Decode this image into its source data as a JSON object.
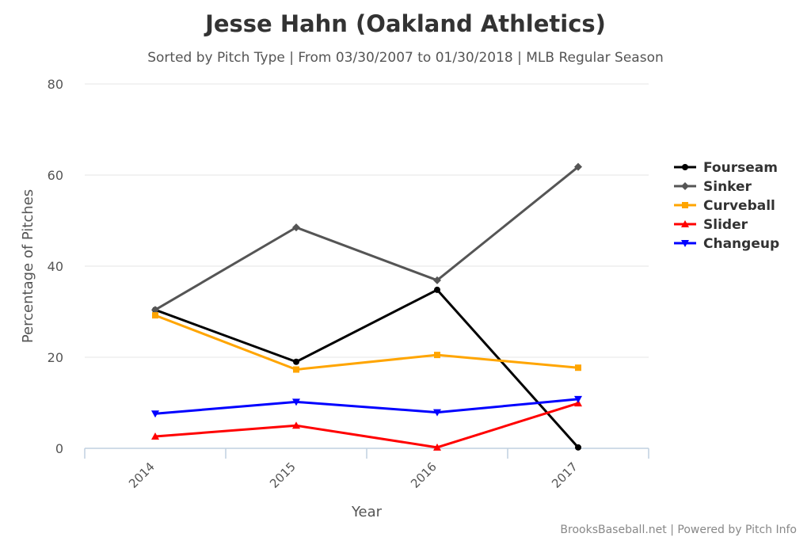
{
  "chart_data": {
    "type": "line",
    "title": "Jesse Hahn (Oakland Athletics)",
    "subtitle": "Sorted by Pitch Type | From 03/30/2007 to 01/30/2018 | MLB Regular Season",
    "xlabel": "Year",
    "ylabel": "Percentage of Pitches",
    "categories": [
      "2014",
      "2015",
      "2016",
      "2017"
    ],
    "ylim": [
      0,
      80
    ],
    "yticks": [
      0,
      20,
      40,
      60,
      80
    ],
    "grid": true,
    "legend_position": "right",
    "series": [
      {
        "name": "Fourseam",
        "color": "#000000",
        "marker": "circle",
        "values": [
          30.4,
          19.0,
          34.8,
          0.2
        ]
      },
      {
        "name": "Sinker",
        "color": "#555555",
        "marker": "diamond",
        "values": [
          30.4,
          48.5,
          36.9,
          61.8
        ]
      },
      {
        "name": "Curveball",
        "color": "#ffa500",
        "marker": "square",
        "values": [
          29.2,
          17.3,
          20.5,
          17.7
        ]
      },
      {
        "name": "Slider",
        "color": "#ff0000",
        "marker": "triangle-up",
        "values": [
          2.6,
          5.0,
          0.2,
          9.9
        ]
      },
      {
        "name": "Changeup",
        "color": "#0000ff",
        "marker": "triangle-down",
        "values": [
          7.6,
          10.2,
          7.9,
          10.8
        ]
      }
    ]
  },
  "credits": "BrooksBaseball.net | Powered by Pitch Info"
}
